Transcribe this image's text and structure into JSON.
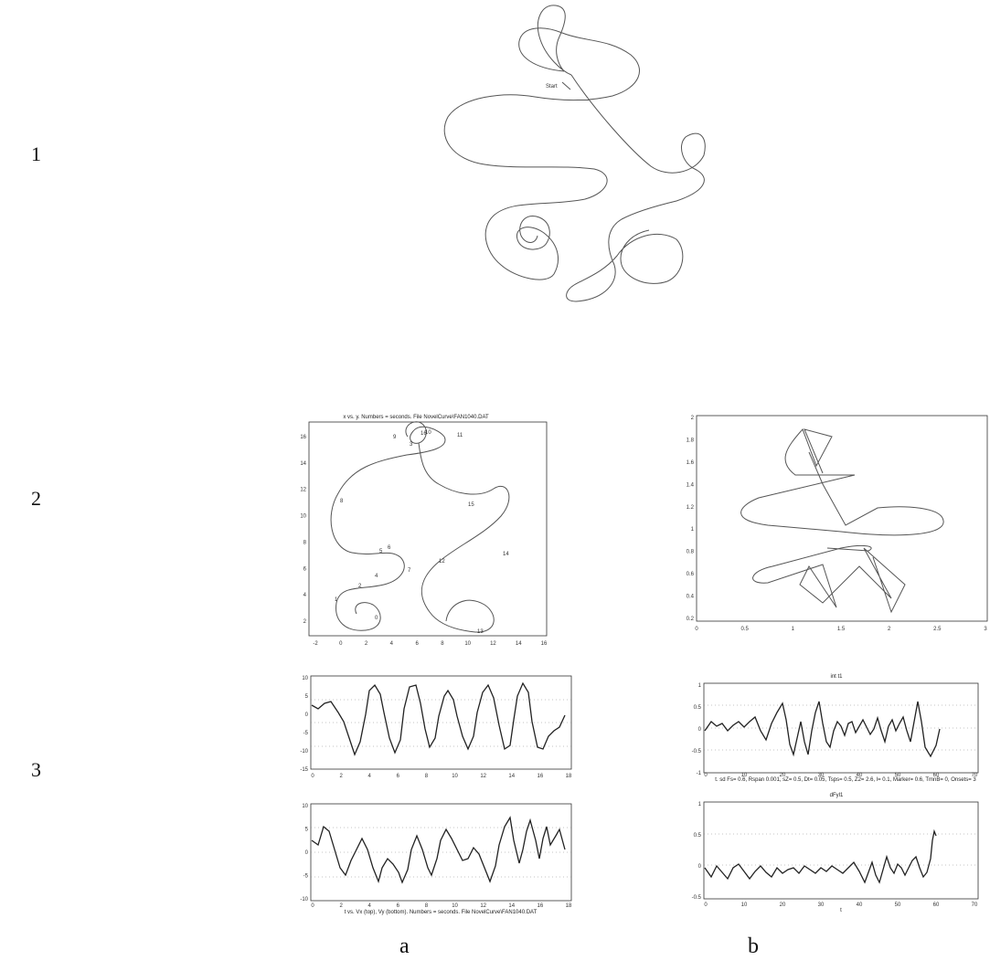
{
  "row_labels": [
    "1",
    "2",
    "3"
  ],
  "col_labels": [
    "a",
    "b"
  ],
  "top_curve": {
    "start_label": "Start"
  },
  "plot2a": {
    "title": "x vs. y. Numbers = seconds. File NovelCurve\\FAN1040.DAT",
    "x_ticks": [
      "-2",
      "0",
      "2",
      "4",
      "6",
      "8",
      "10",
      "12",
      "14",
      "16"
    ],
    "y_ticks": [
      "16",
      "14",
      "12",
      "10",
      "8",
      "6",
      "4",
      "2"
    ],
    "point_labels": [
      "0",
      "1",
      "2",
      "3",
      "4",
      "5",
      "6",
      "7",
      "8",
      "9",
      "10",
      "11",
      "12",
      "13",
      "14",
      "15",
      "16"
    ]
  },
  "plot2b": {
    "x_ticks": [
      "0",
      "0.5",
      "1",
      "1.5",
      "2",
      "2.5",
      "3"
    ],
    "y_ticks": [
      "2",
      "1.8",
      "1.6",
      "1.4",
      "1.2",
      "1",
      "0.8",
      "0.6",
      "0.4",
      "0.2"
    ]
  },
  "plot3a_top": {
    "x_ticks": [
      "0",
      "2",
      "4",
      "6",
      "8",
      "10",
      "12",
      "14",
      "16",
      "18"
    ],
    "y_ticks": [
      "10",
      "5",
      "0",
      "-5",
      "-10",
      "-15"
    ]
  },
  "plot3a_bottom": {
    "x_ticks": [
      "0",
      "2",
      "4",
      "6",
      "8",
      "10",
      "12",
      "14",
      "16",
      "18"
    ],
    "y_ticks": [
      "10",
      "5",
      "0",
      "-5",
      "-10"
    ],
    "caption": "t vs. Vx (top), Vy (bottom). Numbers = seconds. File NovelCurve\\FAN1040.DAT"
  },
  "plot3b_top": {
    "title": "int t1",
    "x_ticks": [
      "0",
      "10",
      "20",
      "30",
      "40",
      "50",
      "60",
      "70"
    ],
    "y_ticks": [
      "1",
      "0.5",
      "0",
      "-0.5",
      "-1"
    ],
    "caption": "t. sd Fs= 0.6, Rspan 0.001, sZ= 0.5, Dt= 0.05, Tsps= 0.5, Z2= 2.6, l= 0.1, Marker= 0.6, TmnB= 0, Onsets= 3"
  },
  "plot3b_bottom": {
    "title": "dFyl1",
    "x_ticks": [
      "0",
      "10",
      "20",
      "30",
      "40",
      "50",
      "60",
      "70"
    ],
    "y_ticks": [
      "1",
      "0.5",
      "0",
      "-0.5"
    ],
    "xlabel": "t"
  }
}
